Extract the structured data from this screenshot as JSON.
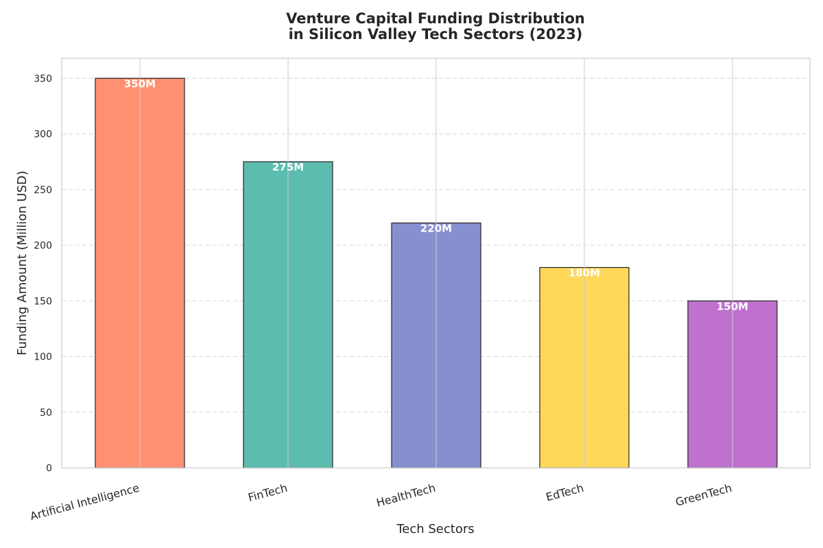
{
  "chart_data": {
    "type": "bar",
    "title": "Venture Capital Funding Distribution",
    "subtitle": "in Silicon Valley Tech Sectors (2023)",
    "xlabel": "Tech Sectors",
    "ylabel": "Funding Amount (Million USD)",
    "categories": [
      "Artificial Intelligence",
      "FinTech",
      "HealthTech",
      "EdTech",
      "GreenTech"
    ],
    "values": [
      350,
      275,
      220,
      180,
      150
    ],
    "data_labels": [
      "350M",
      "275M",
      "220M",
      "180M",
      "150M"
    ],
    "colors": [
      "#FF9172",
      "#5DBCB0",
      "#8690D0",
      "#FFD85A",
      "#BE72CD"
    ],
    "ylim": [
      0,
      368
    ],
    "yticks": [
      0,
      50,
      100,
      150,
      200,
      250,
      300,
      350
    ],
    "grid": true,
    "legend": "none"
  }
}
